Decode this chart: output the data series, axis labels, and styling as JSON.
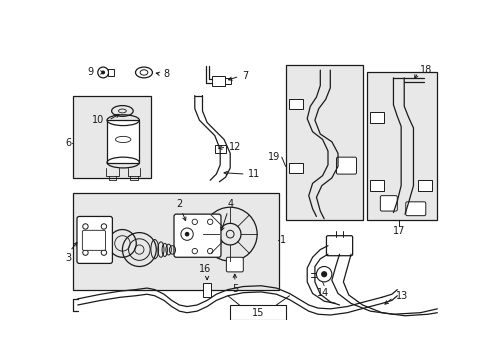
{
  "bg_color": "#ffffff",
  "figsize": [
    4.89,
    3.6
  ],
  "dpi": 100,
  "lc": "#1a1a1a",
  "lw": 0.9,
  "box_fill": "#e8e8e8",
  "fs": 7.0
}
